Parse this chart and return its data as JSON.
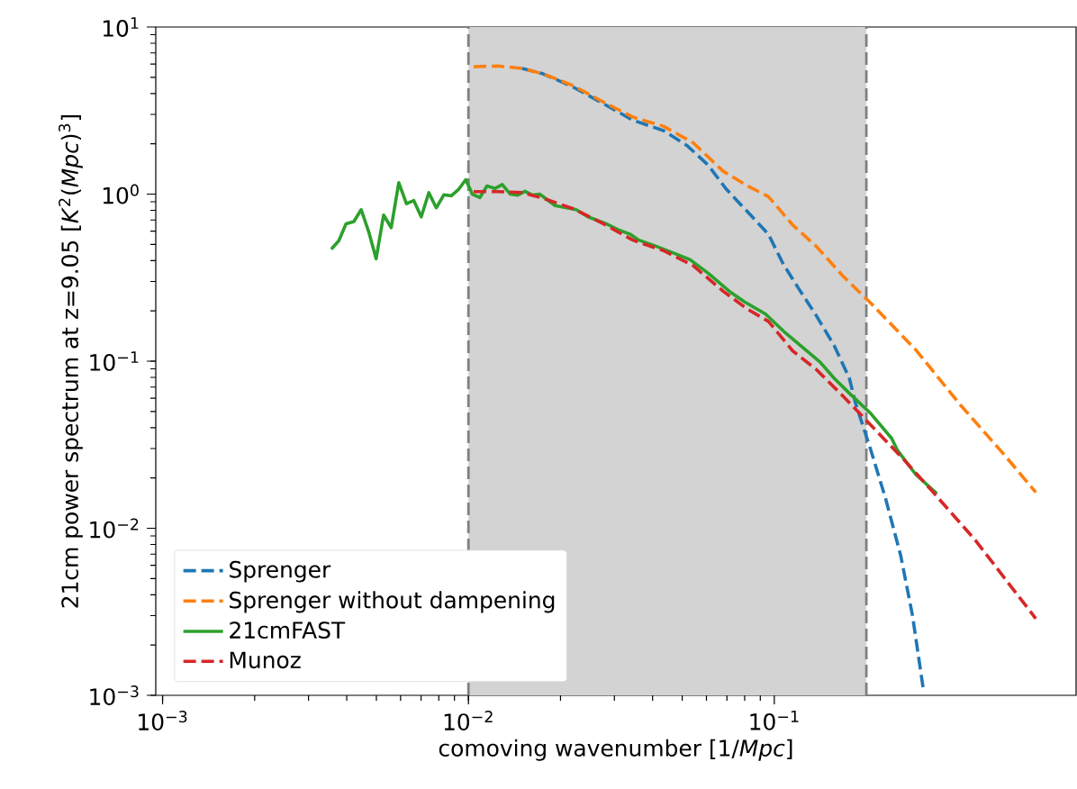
{
  "chart_data": {
    "type": "line",
    "log": "xy",
    "legend": "bottom left",
    "xlabel": "comoving wavenumber [1/*Mpc*]",
    "ylabel": "21cm power spectrum at z=9.05 [*K*$^{2}$(*Mpc*)$^{3}$]",
    "xlim": [
      0.00095,
      0.97
    ],
    "ylim": [
      0.001,
      10
    ],
    "xticks": [
      {
        "value": 0.001,
        "label": "10$^{−3}$"
      },
      {
        "value": 0.01,
        "label": "10$^{−2}$"
      },
      {
        "value": 0.1,
        "label": "10$^{−1}$"
      }
    ],
    "yticks": [
      {
        "value": 0.001,
        "label": "10$^{−3}$"
      },
      {
        "value": 0.01,
        "label": "10$^{−2}$"
      },
      {
        "value": 0.1,
        "label": "10$^{−1}$"
      },
      {
        "value": 1,
        "label": "10$^{0}$"
      },
      {
        "value": 10,
        "label": "10$^{1}$"
      }
    ],
    "bands": [
      {
        "axis": "x",
        "from": 0.01,
        "to": 0.2,
        "color": "#d3d3d3"
      }
    ],
    "ref_lines": [
      {
        "axis": "x",
        "value": 0.01,
        "color": "#808080",
        "line_style": "dashed"
      },
      {
        "axis": "x",
        "value": 0.2,
        "color": "#808080",
        "line_style": "dashed"
      }
    ],
    "series": [
      {
        "name": "Sprenger",
        "color": "#1f77b4",
        "line_style": "dashed",
        "x": [
          0.015,
          0.0175,
          0.022,
          0.0276,
          0.0345,
          0.0434,
          0.0519,
          0.0608,
          0.0697,
          0.0817,
          0.0957,
          0.107,
          0.12,
          0.137,
          0.157,
          0.176,
          0.184,
          0.207,
          0.231,
          0.259,
          0.283,
          0.307
        ],
        "values": [
          5.65,
          5.26,
          4.37,
          3.48,
          2.77,
          2.4,
          1.95,
          1.49,
          1.07,
          0.785,
          0.575,
          0.381,
          0.273,
          0.188,
          0.124,
          0.079,
          0.0567,
          0.0292,
          0.0151,
          0.00687,
          0.00301,
          0.00109
        ]
      },
      {
        "name": "Sprenger without dampening",
        "color": "#ff7f0e",
        "line_style": "dashed",
        "x": [
          0.0104,
          0.0125,
          0.015,
          0.0175,
          0.022,
          0.0276,
          0.0345,
          0.0434,
          0.0543,
          0.0681,
          0.0817,
          0.0957,
          0.115,
          0.137,
          0.168,
          0.207,
          0.29,
          0.407,
          0.571,
          0.716
        ],
        "values": [
          5.79,
          5.85,
          5.65,
          5.26,
          4.46,
          3.56,
          2.89,
          2.55,
          2.03,
          1.37,
          1.12,
          0.966,
          0.652,
          0.488,
          0.322,
          0.222,
          0.117,
          0.0544,
          0.0269,
          0.0164
        ]
      },
      {
        "name": "21cmFAST",
        "color": "#2ca02c",
        "line_style": "solid",
        "x": [
          0.00356,
          0.00377,
          0.00398,
          0.00422,
          0.00446,
          0.00472,
          0.00499,
          0.00528,
          0.00559,
          0.00592,
          0.00627,
          0.00663,
          0.00701,
          0.00742,
          0.00785,
          0.00831,
          0.00879,
          0.0093,
          0.0098,
          0.0103,
          0.0109,
          0.0115,
          0.0122,
          0.0129,
          0.0137,
          0.0145,
          0.0153,
          0.0162,
          0.0171,
          0.0192,
          0.0225,
          0.0246,
          0.0282,
          0.0309,
          0.0338,
          0.0361,
          0.0405,
          0.0474,
          0.0531,
          0.0608,
          0.0713,
          0.0798,
          0.0935,
          0.109,
          0.123,
          0.141,
          0.157,
          0.176,
          0.207,
          0.242,
          0.253,
          0.29,
          0.34
        ],
        "values": [
          0.468,
          0.526,
          0.665,
          0.685,
          0.807,
          0.595,
          0.41,
          0.75,
          0.63,
          1.17,
          0.877,
          0.915,
          0.731,
          1.02,
          0.828,
          0.99,
          0.977,
          1.07,
          1.22,
          1.0,
          0.954,
          1.12,
          1.08,
          1.14,
          1.0,
          0.986,
          1.04,
          0.986,
          1.0,
          0.853,
          0.808,
          0.731,
          0.665,
          0.612,
          0.575,
          0.53,
          0.492,
          0.44,
          0.405,
          0.336,
          0.262,
          0.227,
          0.192,
          0.147,
          0.122,
          0.099,
          0.079,
          0.0643,
          0.0485,
          0.0345,
          0.0292,
          0.021,
          0.0161
        ]
      },
      {
        "name": "Munoz",
        "color": "#d62728",
        "line_style": "dashed",
        "x": [
          0.0104,
          0.0125,
          0.015,
          0.0175,
          0.022,
          0.0276,
          0.0345,
          0.0434,
          0.0543,
          0.0681,
          0.0817,
          0.0957,
          0.115,
          0.137,
          0.168,
          0.211,
          0.265,
          0.331,
          0.455,
          0.716
        ],
        "values": [
          1.035,
          1.035,
          1.02,
          0.946,
          0.818,
          0.665,
          0.53,
          0.459,
          0.373,
          0.262,
          0.205,
          0.173,
          0.115,
          0.0894,
          0.0617,
          0.0399,
          0.0258,
          0.0164,
          0.00845,
          0.00288
        ]
      }
    ]
  }
}
